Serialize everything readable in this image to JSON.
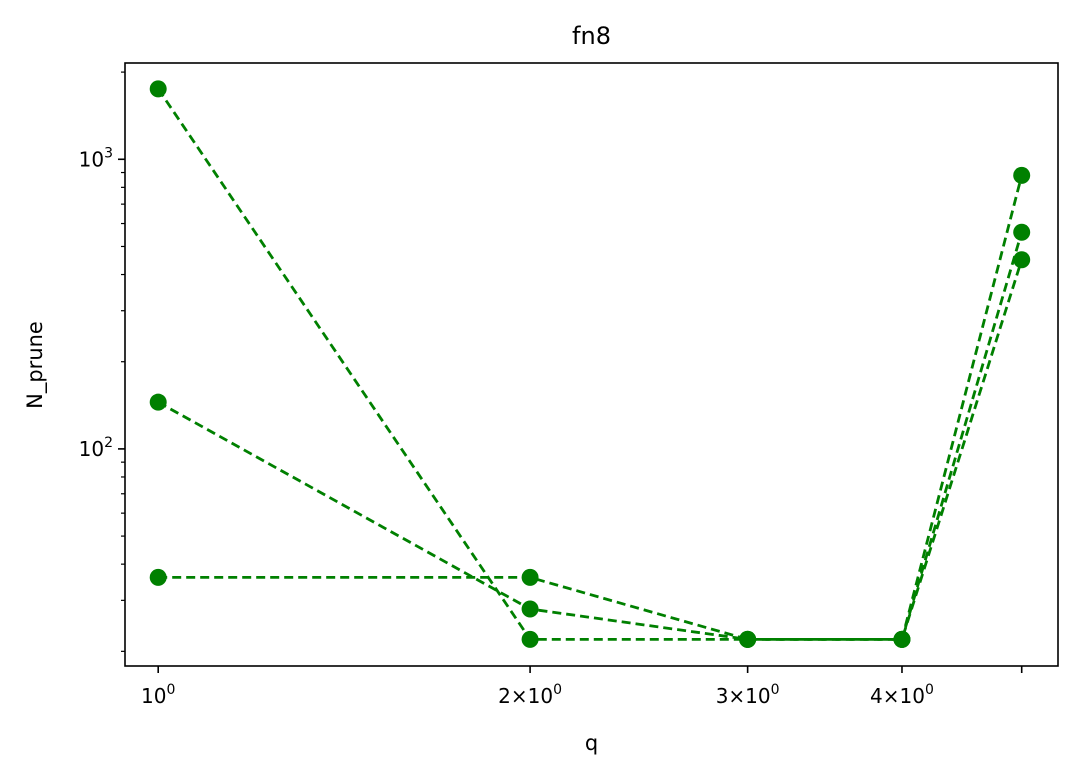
{
  "chart_data": {
    "type": "line",
    "title": "fn8",
    "xlabel": "q",
    "ylabel": "N_prune",
    "xscale": "log",
    "yscale": "log",
    "xlim": [
      0.94,
      5.35
    ],
    "ylim": [
      17.8,
      2150
    ],
    "grid": false,
    "color": "#008000",
    "line_style": "dashed",
    "marker": "circle",
    "x_ticks": [
      {
        "value": 1,
        "base": "10",
        "exp": "0"
      },
      {
        "value": 2,
        "base": "2×10",
        "exp": "0"
      },
      {
        "value": 3,
        "base": "3×10",
        "exp": "0"
      },
      {
        "value": 4,
        "base": "4×10",
        "exp": "0"
      },
      {
        "value": 5,
        "base": "",
        "exp": ""
      }
    ],
    "y_ticks": [
      {
        "value": 100,
        "base": "10",
        "exp": "2"
      },
      {
        "value": 1000,
        "base": "10",
        "exp": "3"
      }
    ],
    "x": [
      1,
      2,
      3,
      4,
      5
    ],
    "series": [
      {
        "values": [
          1750,
          22,
          22,
          22,
          880
        ]
      },
      {
        "values": [
          145,
          28,
          22,
          22,
          560
        ]
      },
      {
        "values": [
          36,
          36,
          22,
          22,
          450
        ]
      }
    ]
  }
}
